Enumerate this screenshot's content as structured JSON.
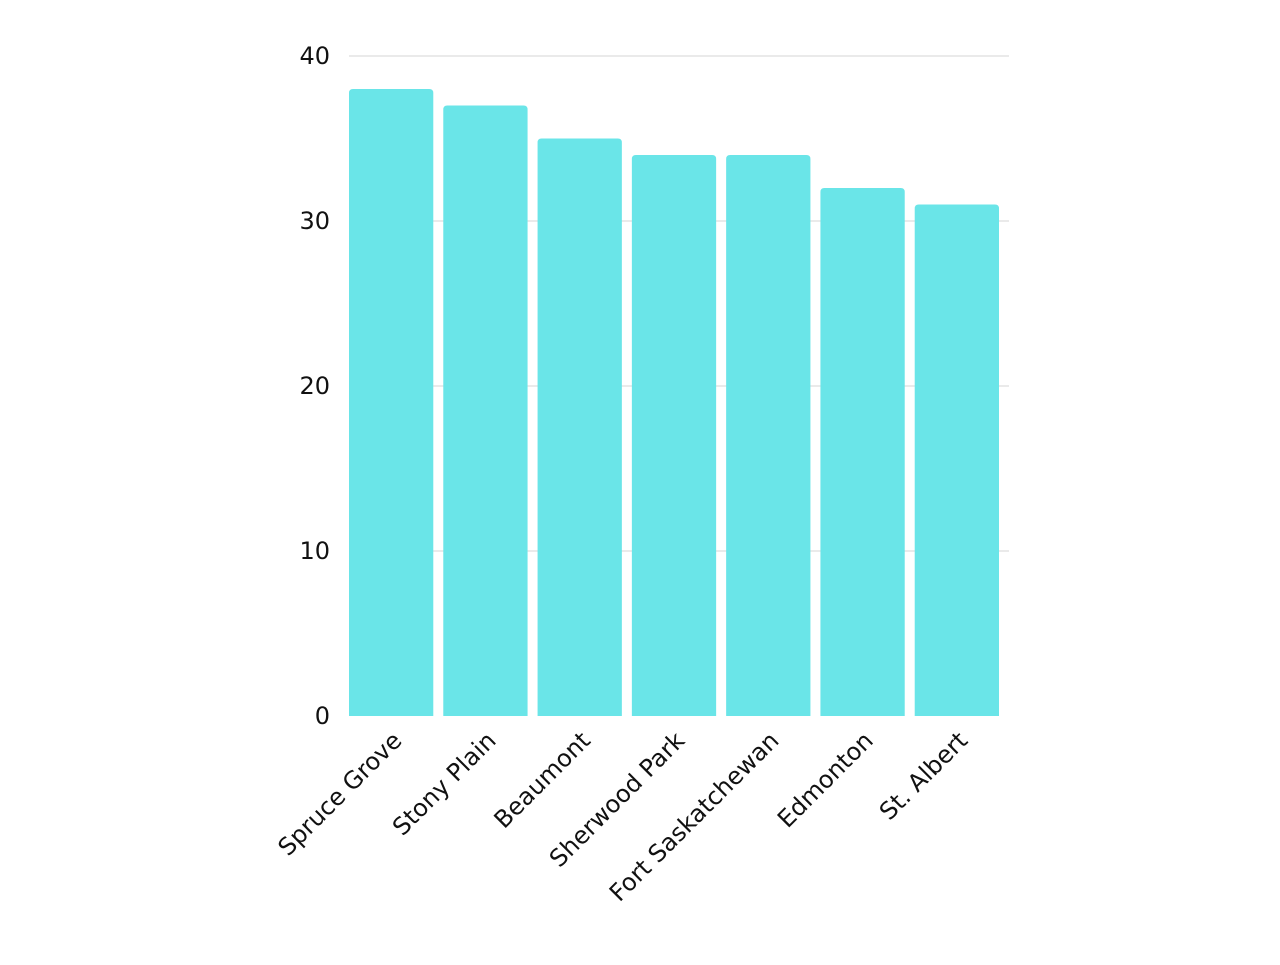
{
  "chart_data": {
    "type": "bar",
    "title": "",
    "xlabel": "",
    "ylabel": "",
    "categories": [
      "Spruce Grove",
      "Stony Plain",
      "Beaumont",
      "Sherwood Park",
      "Fort Saskatchewan",
      "Edmonton",
      "St. Albert"
    ],
    "values": [
      38,
      37,
      35,
      34,
      34,
      32,
      31
    ],
    "ylim": [
      0,
      40
    ],
    "yticks": [
      0,
      10,
      20,
      30,
      40
    ],
    "grid": true,
    "legend": "none",
    "colors": {
      "bar": "#6ae5e8",
      "grid": "#d6d6d6",
      "text": "#111111"
    }
  }
}
